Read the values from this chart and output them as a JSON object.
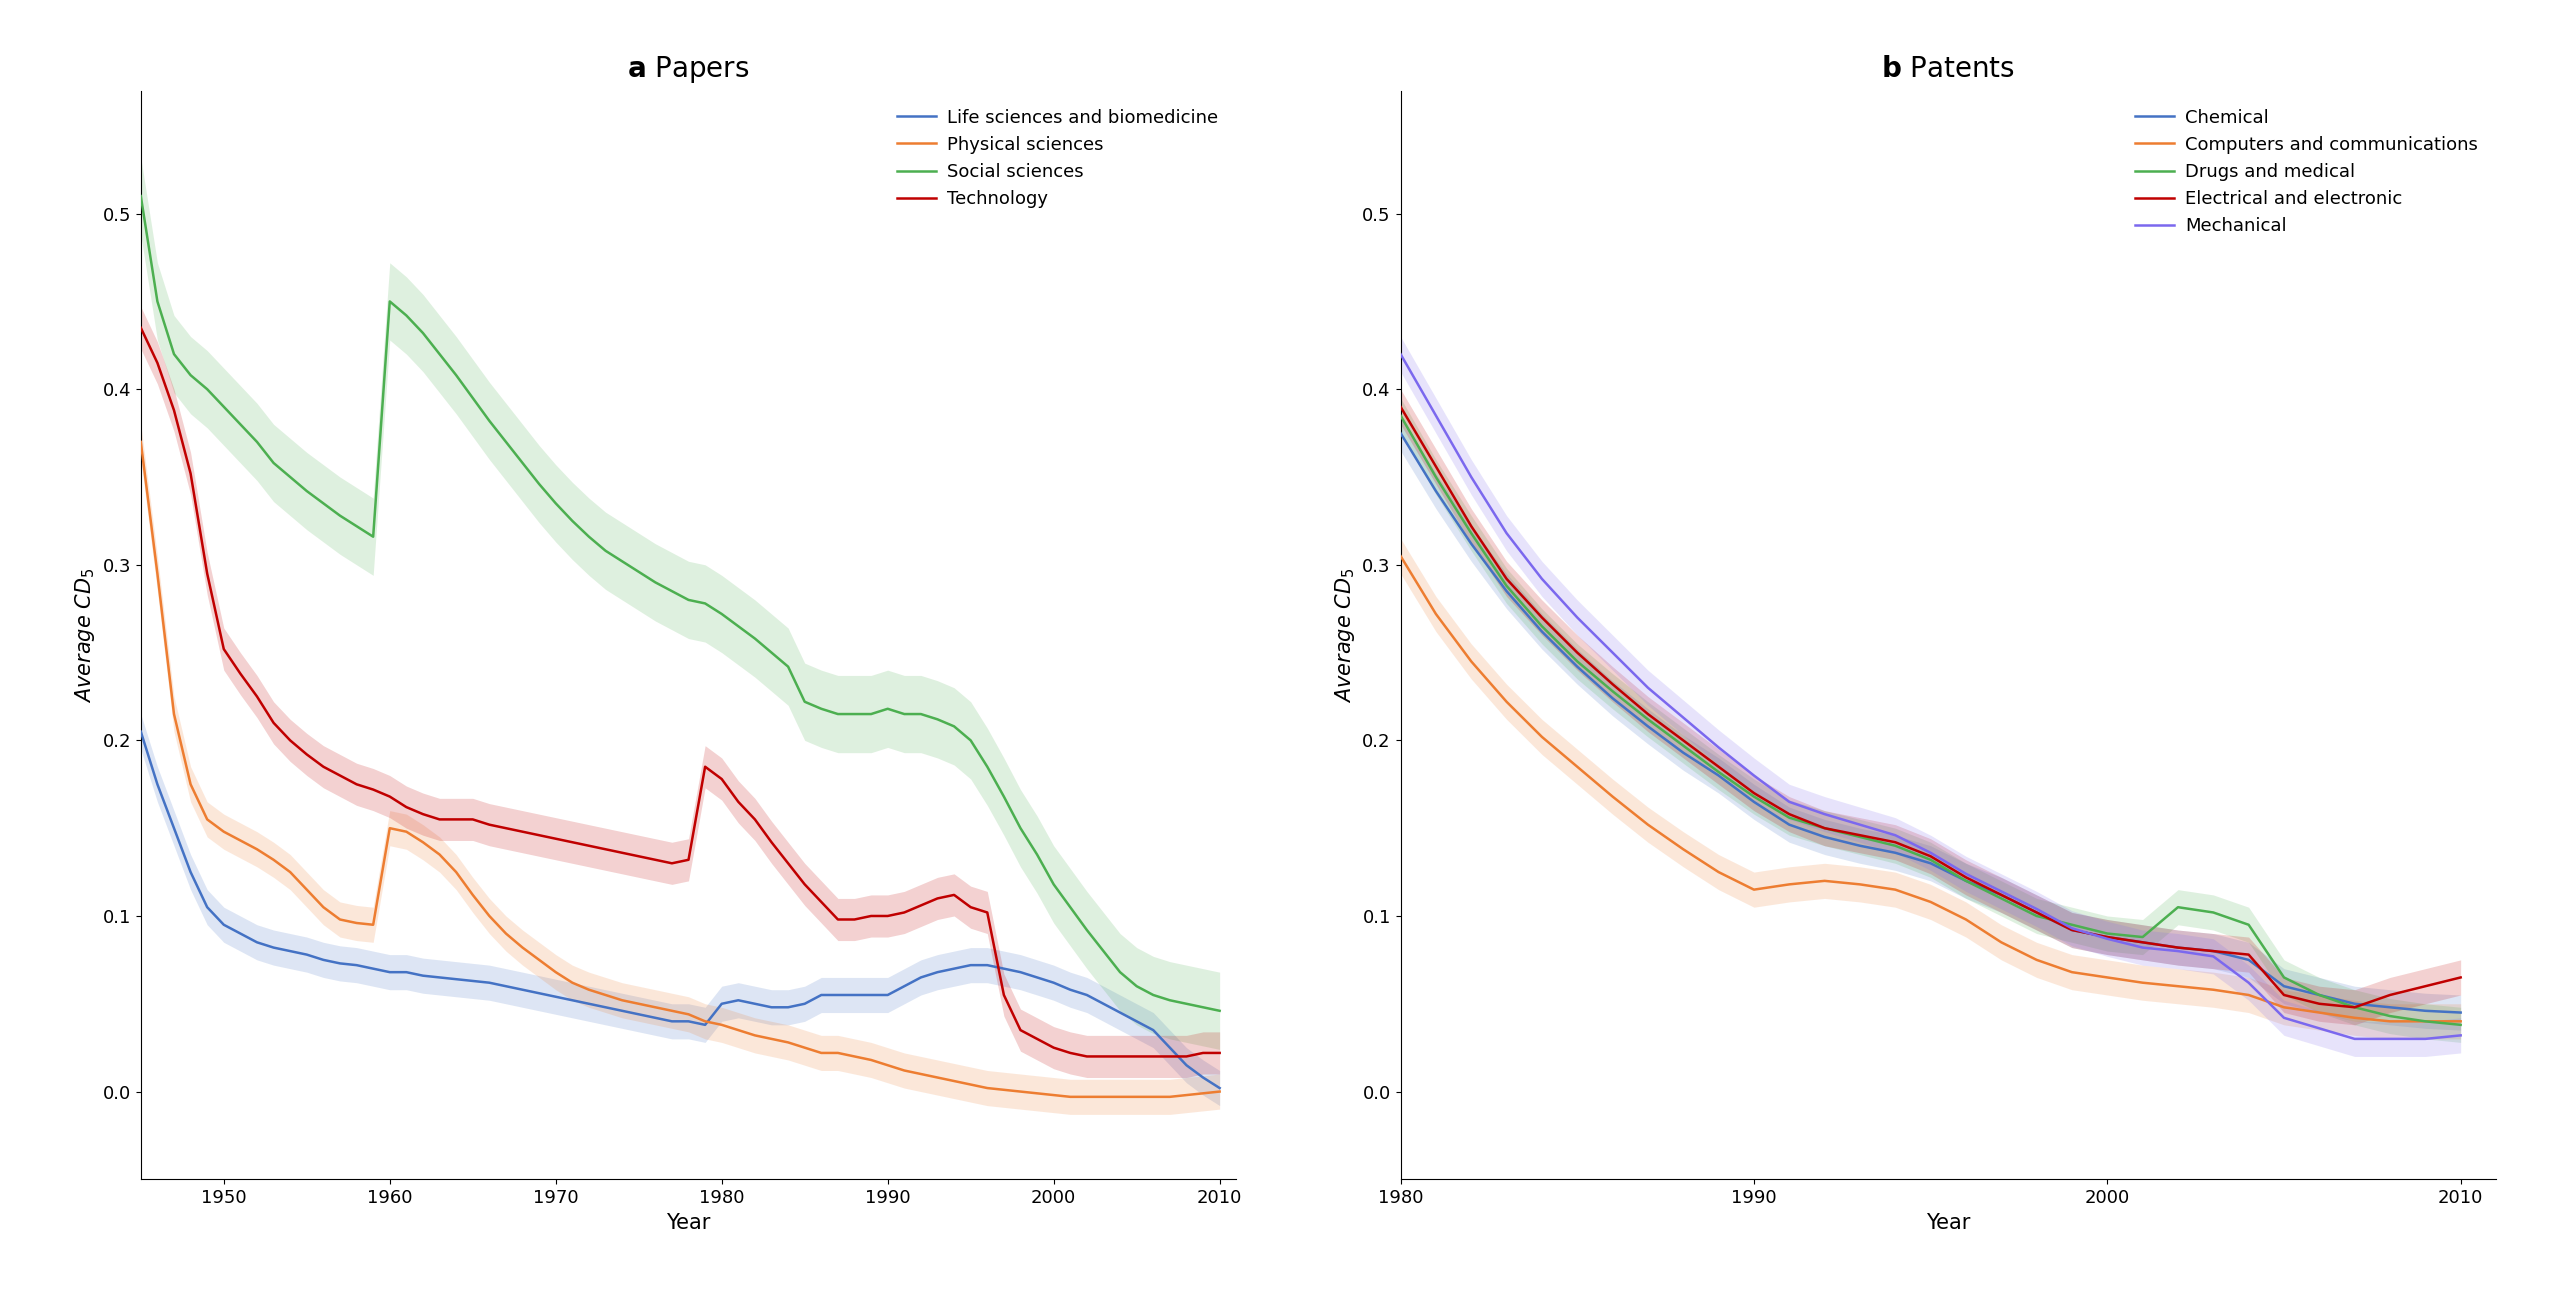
{
  "panel_a": {
    "title_bold": "a",
    "title_normal": " Papers",
    "xlabel": "Year",
    "ylabel": "Average $CD_5$",
    "xlim": [
      1945,
      2011
    ],
    "ylim": [
      -0.05,
      0.57
    ],
    "yticks": [
      0.0,
      0.1,
      0.2,
      0.3,
      0.4,
      0.5
    ],
    "xticks": [
      1950,
      1960,
      1970,
      1980,
      1990,
      2000,
      2010
    ],
    "series": {
      "life_sciences": {
        "label": "Life sciences and biomedicine",
        "color": "#4472c4",
        "years": [
          1945,
          1946,
          1947,
          1948,
          1949,
          1950,
          1951,
          1952,
          1953,
          1954,
          1955,
          1956,
          1957,
          1958,
          1959,
          1960,
          1961,
          1962,
          1963,
          1964,
          1965,
          1966,
          1967,
          1968,
          1969,
          1970,
          1971,
          1972,
          1973,
          1974,
          1975,
          1976,
          1977,
          1978,
          1979,
          1980,
          1981,
          1982,
          1983,
          1984,
          1985,
          1986,
          1987,
          1988,
          1989,
          1990,
          1991,
          1992,
          1993,
          1994,
          1995,
          1996,
          1997,
          1998,
          1999,
          2000,
          2001,
          2002,
          2003,
          2004,
          2005,
          2006,
          2007,
          2008,
          2009,
          2010
        ],
        "values": [
          0.205,
          0.175,
          0.15,
          0.125,
          0.105,
          0.095,
          0.09,
          0.085,
          0.082,
          0.08,
          0.078,
          0.075,
          0.073,
          0.072,
          0.07,
          0.068,
          0.068,
          0.066,
          0.065,
          0.064,
          0.063,
          0.062,
          0.06,
          0.058,
          0.056,
          0.054,
          0.052,
          0.05,
          0.048,
          0.046,
          0.044,
          0.042,
          0.04,
          0.04,
          0.038,
          0.05,
          0.052,
          0.05,
          0.048,
          0.048,
          0.05,
          0.055,
          0.055,
          0.055,
          0.055,
          0.055,
          0.06,
          0.065,
          0.068,
          0.07,
          0.072,
          0.072,
          0.07,
          0.068,
          0.065,
          0.062,
          0.058,
          0.055,
          0.05,
          0.045,
          0.04,
          0.035,
          0.025,
          0.015,
          0.008,
          0.002
        ],
        "band": 0.01
      },
      "physical_sciences": {
        "label": "Physical sciences",
        "color": "#ed7d31",
        "years": [
          1945,
          1946,
          1947,
          1948,
          1949,
          1950,
          1951,
          1952,
          1953,
          1954,
          1955,
          1956,
          1957,
          1958,
          1959,
          1960,
          1961,
          1962,
          1963,
          1964,
          1965,
          1966,
          1967,
          1968,
          1969,
          1970,
          1971,
          1972,
          1973,
          1974,
          1975,
          1976,
          1977,
          1978,
          1979,
          1980,
          1981,
          1982,
          1983,
          1984,
          1985,
          1986,
          1987,
          1988,
          1989,
          1990,
          1991,
          1992,
          1993,
          1994,
          1995,
          1996,
          1997,
          1998,
          1999,
          2000,
          2001,
          2002,
          2003,
          2004,
          2005,
          2006,
          2007,
          2008,
          2009,
          2010
        ],
        "values": [
          0.37,
          0.295,
          0.215,
          0.175,
          0.155,
          0.148,
          0.143,
          0.138,
          0.132,
          0.125,
          0.115,
          0.105,
          0.098,
          0.096,
          0.095,
          0.15,
          0.148,
          0.142,
          0.135,
          0.125,
          0.112,
          0.1,
          0.09,
          0.082,
          0.075,
          0.068,
          0.062,
          0.058,
          0.055,
          0.052,
          0.05,
          0.048,
          0.046,
          0.044,
          0.04,
          0.038,
          0.035,
          0.032,
          0.03,
          0.028,
          0.025,
          0.022,
          0.022,
          0.02,
          0.018,
          0.015,
          0.012,
          0.01,
          0.008,
          0.006,
          0.004,
          0.002,
          0.001,
          0.0,
          -0.001,
          -0.002,
          -0.003,
          -0.003,
          -0.003,
          -0.003,
          -0.003,
          -0.003,
          -0.003,
          -0.002,
          -0.001,
          0.0
        ],
        "band": 0.01
      },
      "social_sciences": {
        "label": "Social sciences",
        "color": "#4caf50",
        "years": [
          1945,
          1946,
          1947,
          1948,
          1949,
          1950,
          1951,
          1952,
          1953,
          1954,
          1955,
          1956,
          1957,
          1958,
          1959,
          1960,
          1961,
          1962,
          1963,
          1964,
          1965,
          1966,
          1967,
          1968,
          1969,
          1970,
          1971,
          1972,
          1973,
          1974,
          1975,
          1976,
          1977,
          1978,
          1979,
          1980,
          1981,
          1982,
          1983,
          1984,
          1985,
          1986,
          1987,
          1988,
          1989,
          1990,
          1991,
          1992,
          1993,
          1994,
          1995,
          1996,
          1997,
          1998,
          1999,
          2000,
          2001,
          2002,
          2003,
          2004,
          2005,
          2006,
          2007,
          2008,
          2009,
          2010
        ],
        "values": [
          0.51,
          0.45,
          0.42,
          0.408,
          0.4,
          0.39,
          0.38,
          0.37,
          0.358,
          0.35,
          0.342,
          0.335,
          0.328,
          0.322,
          0.316,
          0.45,
          0.442,
          0.432,
          0.42,
          0.408,
          0.395,
          0.382,
          0.37,
          0.358,
          0.346,
          0.335,
          0.325,
          0.316,
          0.308,
          0.302,
          0.296,
          0.29,
          0.285,
          0.28,
          0.278,
          0.272,
          0.265,
          0.258,
          0.25,
          0.242,
          0.222,
          0.218,
          0.215,
          0.215,
          0.215,
          0.218,
          0.215,
          0.215,
          0.212,
          0.208,
          0.2,
          0.185,
          0.168,
          0.15,
          0.135,
          0.118,
          0.105,
          0.092,
          0.08,
          0.068,
          0.06,
          0.055,
          0.052,
          0.05,
          0.048,
          0.046
        ],
        "band": 0.022
      },
      "technology": {
        "label": "Technology",
        "color": "#c00000",
        "years": [
          1945,
          1946,
          1947,
          1948,
          1949,
          1950,
          1951,
          1952,
          1953,
          1954,
          1955,
          1956,
          1957,
          1958,
          1959,
          1960,
          1961,
          1962,
          1963,
          1964,
          1965,
          1966,
          1967,
          1968,
          1969,
          1970,
          1971,
          1972,
          1973,
          1974,
          1975,
          1976,
          1977,
          1978,
          1979,
          1980,
          1981,
          1982,
          1983,
          1984,
          1985,
          1986,
          1987,
          1988,
          1989,
          1990,
          1991,
          1992,
          1993,
          1994,
          1995,
          1996,
          1997,
          1998,
          1999,
          2000,
          2001,
          2002,
          2003,
          2004,
          2005,
          2006,
          2007,
          2008,
          2009,
          2010
        ],
        "values": [
          0.435,
          0.415,
          0.388,
          0.352,
          0.295,
          0.252,
          0.238,
          0.225,
          0.21,
          0.2,
          0.192,
          0.185,
          0.18,
          0.175,
          0.172,
          0.168,
          0.162,
          0.158,
          0.155,
          0.155,
          0.155,
          0.152,
          0.15,
          0.148,
          0.146,
          0.144,
          0.142,
          0.14,
          0.138,
          0.136,
          0.134,
          0.132,
          0.13,
          0.132,
          0.185,
          0.178,
          0.165,
          0.155,
          0.142,
          0.13,
          0.118,
          0.108,
          0.098,
          0.098,
          0.1,
          0.1,
          0.102,
          0.106,
          0.11,
          0.112,
          0.105,
          0.102,
          0.055,
          0.035,
          0.03,
          0.025,
          0.022,
          0.02,
          0.02,
          0.02,
          0.02,
          0.02,
          0.02,
          0.02,
          0.022,
          0.022
        ],
        "band": 0.012
      }
    }
  },
  "panel_b": {
    "title_bold": "b",
    "title_normal": " Patents",
    "xlabel": "Year",
    "ylabel": "Average $CD_5$",
    "xlim": [
      1980,
      2011
    ],
    "ylim": [
      -0.05,
      0.57
    ],
    "yticks": [
      0.0,
      0.1,
      0.2,
      0.3,
      0.4,
      0.5
    ],
    "xticks": [
      1980,
      1990,
      2000,
      2010
    ],
    "series": {
      "chemical": {
        "label": "Chemical",
        "color": "#4472c4",
        "years": [
          1980,
          1981,
          1982,
          1983,
          1984,
          1985,
          1986,
          1987,
          1988,
          1989,
          1990,
          1991,
          1992,
          1993,
          1994,
          1995,
          1996,
          1997,
          1998,
          1999,
          2000,
          2001,
          2002,
          2003,
          2004,
          2005,
          2006,
          2007,
          2008,
          2009,
          2010
        ],
        "values": [
          0.375,
          0.342,
          0.312,
          0.285,
          0.262,
          0.242,
          0.224,
          0.208,
          0.193,
          0.18,
          0.165,
          0.152,
          0.145,
          0.14,
          0.136,
          0.13,
          0.12,
          0.112,
          0.102,
          0.092,
          0.088,
          0.085,
          0.082,
          0.08,
          0.075,
          0.06,
          0.055,
          0.05,
          0.048,
          0.046,
          0.045
        ],
        "band": 0.01
      },
      "computers": {
        "label": "Computers and communications",
        "color": "#ed7d31",
        "years": [
          1980,
          1981,
          1982,
          1983,
          1984,
          1985,
          1986,
          1987,
          1988,
          1989,
          1990,
          1991,
          1992,
          1993,
          1994,
          1995,
          1996,
          1997,
          1998,
          1999,
          2000,
          2001,
          2002,
          2003,
          2004,
          2005,
          2006,
          2007,
          2008,
          2009,
          2010
        ],
        "values": [
          0.305,
          0.272,
          0.245,
          0.222,
          0.202,
          0.185,
          0.168,
          0.152,
          0.138,
          0.125,
          0.115,
          0.118,
          0.12,
          0.118,
          0.115,
          0.108,
          0.098,
          0.085,
          0.075,
          0.068,
          0.065,
          0.062,
          0.06,
          0.058,
          0.055,
          0.048,
          0.045,
          0.042,
          0.04,
          0.04,
          0.04
        ],
        "band": 0.01
      },
      "drugs": {
        "label": "Drugs and medical",
        "color": "#4caf50",
        "years": [
          1980,
          1981,
          1982,
          1983,
          1984,
          1985,
          1986,
          1987,
          1988,
          1989,
          1990,
          1991,
          1992,
          1993,
          1994,
          1995,
          1996,
          1997,
          1998,
          1999,
          2000,
          2001,
          2002,
          2003,
          2004,
          2005,
          2006,
          2007,
          2008,
          2009,
          2010
        ],
        "values": [
          0.385,
          0.35,
          0.318,
          0.288,
          0.265,
          0.245,
          0.228,
          0.212,
          0.197,
          0.182,
          0.168,
          0.156,
          0.15,
          0.145,
          0.14,
          0.132,
          0.12,
          0.11,
          0.1,
          0.095,
          0.09,
          0.088,
          0.105,
          0.102,
          0.095,
          0.065,
          0.055,
          0.048,
          0.043,
          0.04,
          0.038
        ],
        "band": 0.01
      },
      "electrical": {
        "label": "Electrical and electronic",
        "color": "#c00000",
        "years": [
          1980,
          1981,
          1982,
          1983,
          1984,
          1985,
          1986,
          1987,
          1988,
          1989,
          1990,
          1991,
          1992,
          1993,
          1994,
          1995,
          1996,
          1997,
          1998,
          1999,
          2000,
          2001,
          2002,
          2003,
          2004,
          2005,
          2006,
          2007,
          2008,
          2009,
          2010
        ],
        "values": [
          0.39,
          0.356,
          0.322,
          0.292,
          0.27,
          0.25,
          0.232,
          0.215,
          0.2,
          0.185,
          0.17,
          0.158,
          0.15,
          0.146,
          0.142,
          0.134,
          0.122,
          0.112,
          0.102,
          0.092,
          0.088,
          0.085,
          0.082,
          0.08,
          0.078,
          0.055,
          0.05,
          0.048,
          0.055,
          0.06,
          0.065
        ],
        "band": 0.01
      },
      "mechanical": {
        "label": "Mechanical",
        "color": "#7b68ee",
        "years": [
          1980,
          1981,
          1982,
          1983,
          1984,
          1985,
          1986,
          1987,
          1988,
          1989,
          1990,
          1991,
          1992,
          1993,
          1994,
          1995,
          1996,
          1997,
          1998,
          1999,
          2000,
          2001,
          2002,
          2003,
          2004,
          2005,
          2006,
          2007,
          2008,
          2009,
          2010
        ],
        "values": [
          0.42,
          0.385,
          0.35,
          0.318,
          0.292,
          0.27,
          0.25,
          0.23,
          0.213,
          0.196,
          0.18,
          0.165,
          0.158,
          0.152,
          0.146,
          0.136,
          0.124,
          0.114,
          0.104,
          0.093,
          0.087,
          0.082,
          0.08,
          0.077,
          0.062,
          0.042,
          0.036,
          0.03,
          0.03,
          0.03,
          0.032
        ],
        "band": 0.01
      }
    }
  },
  "background_color": "#ffffff",
  "title_fontsize": 20,
  "label_fontsize": 15,
  "tick_fontsize": 13,
  "legend_fontsize": 13,
  "line_width": 1.8,
  "alpha_fill": 0.18
}
